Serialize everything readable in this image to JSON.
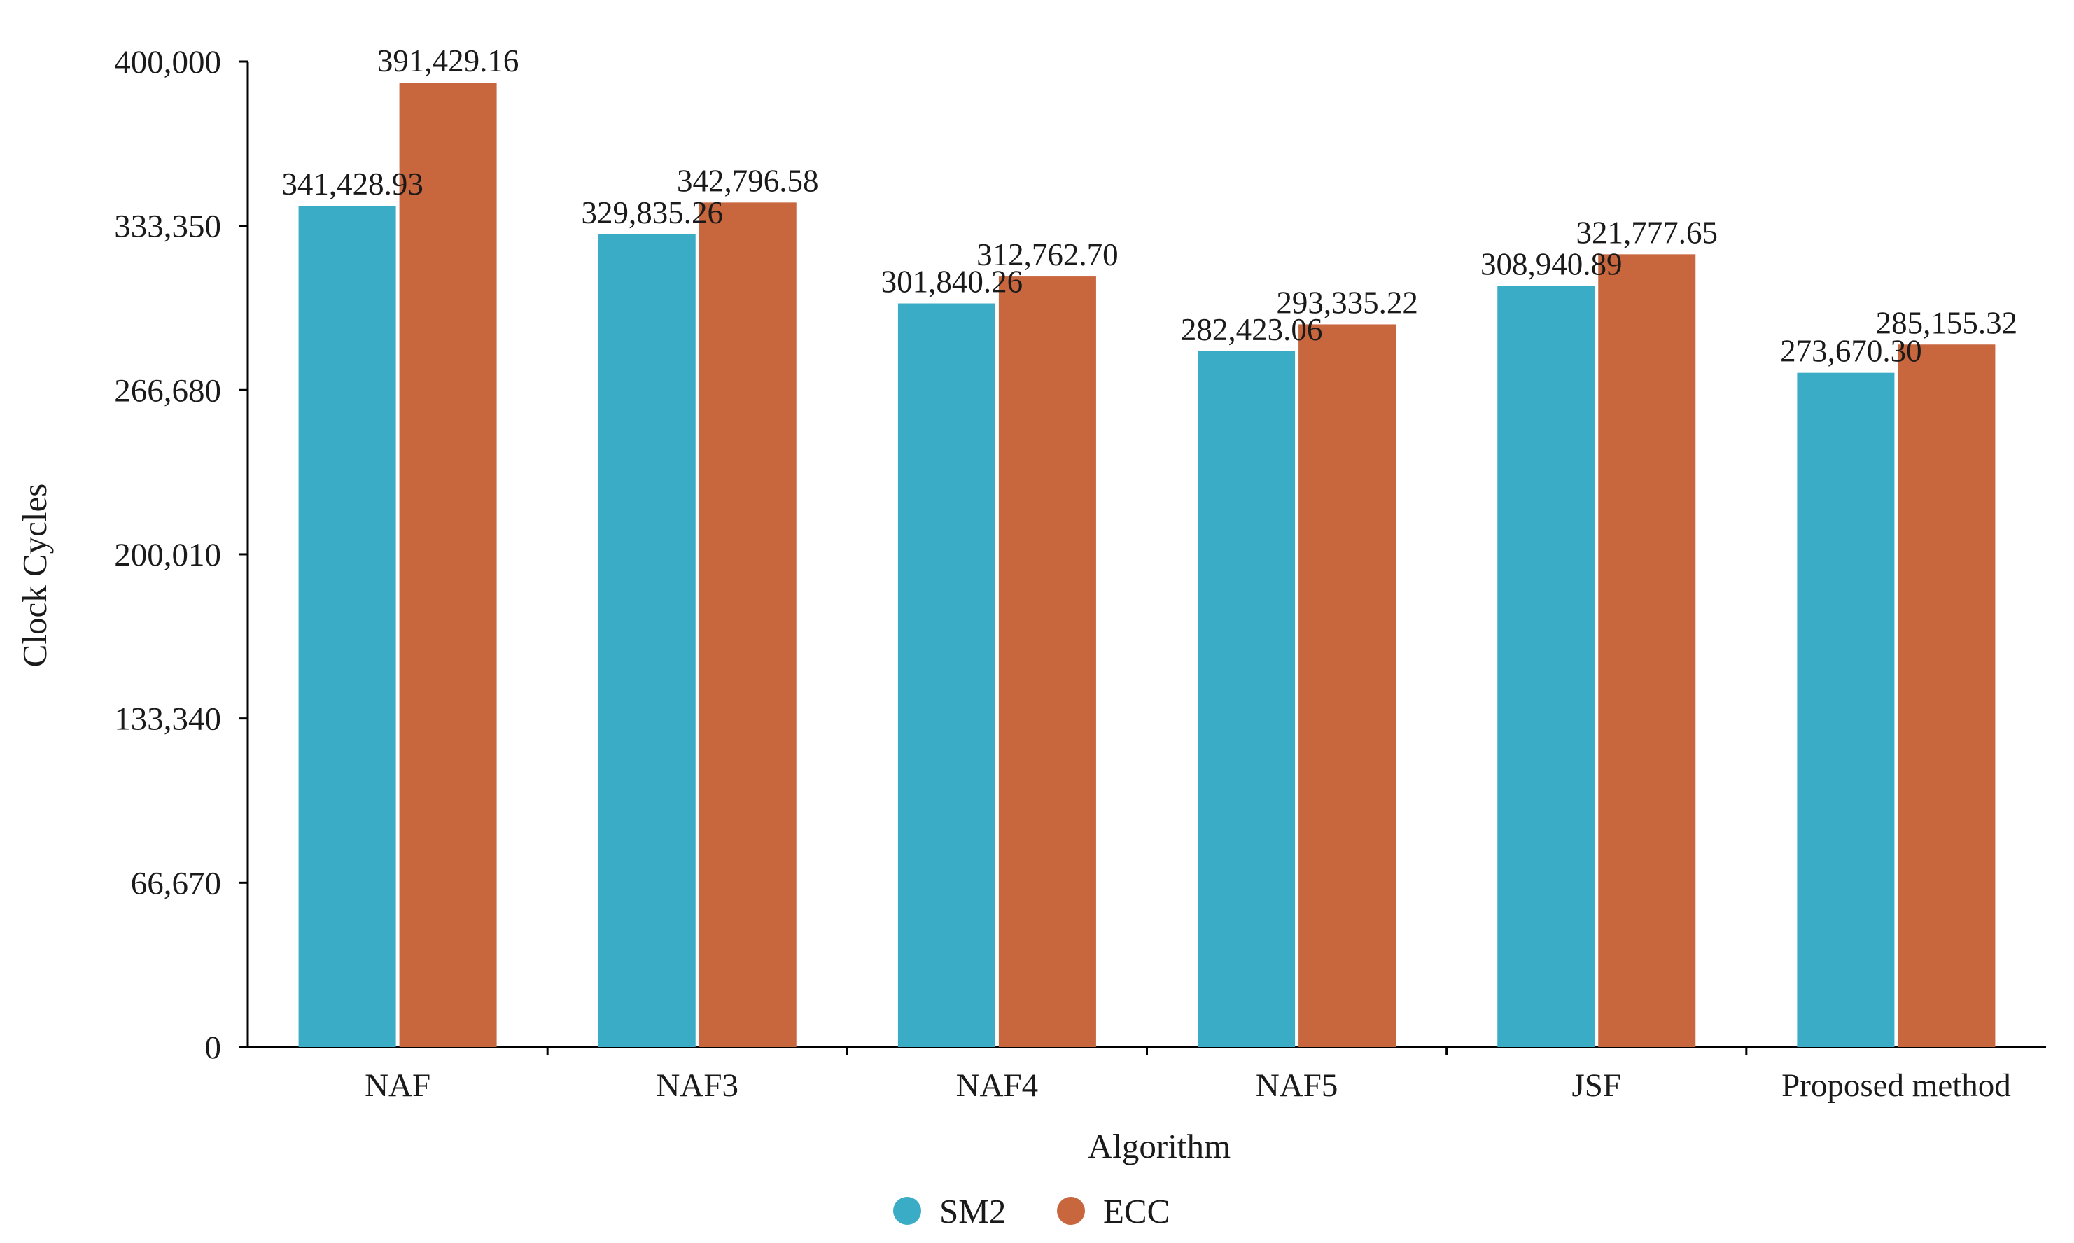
{
  "chart_data": {
    "type": "bar",
    "title": "",
    "xlabel": "Algorithm",
    "ylabel": "Clock Cycles",
    "ylim": [
      0,
      400000
    ],
    "yticks": [
      0,
      66670,
      133340,
      200010,
      266680,
      333350,
      400000
    ],
    "ytick_labels": [
      "0",
      "66,670",
      "133,340",
      "200,010",
      "266,680",
      "333,350",
      "400,000"
    ],
    "categories": [
      "NAF",
      "NAF3",
      "NAF4",
      "NAF5",
      "JSF",
      "Proposed method"
    ],
    "series": [
      {
        "name": "SM2",
        "color": "#3BACC6",
        "values": [
          341428.93,
          329835.26,
          301840.26,
          282423.06,
          308940.89,
          273670.3
        ],
        "labels": [
          "341,428.93",
          "329,835.26",
          "301,840.26",
          "282,423.06",
          "308,940.89",
          "273,670.30"
        ]
      },
      {
        "name": "ECC",
        "color": "#C8663D",
        "values": [
          391429.16,
          342796.58,
          312762.7,
          293335.22,
          321777.65,
          285155.32
        ],
        "labels": [
          "391,429.16",
          "342,796.58",
          "312,762.70",
          "293,335.22",
          "321,777.65",
          "285,155.32"
        ]
      }
    ],
    "grid": false,
    "legend_position": "bottom-center"
  }
}
